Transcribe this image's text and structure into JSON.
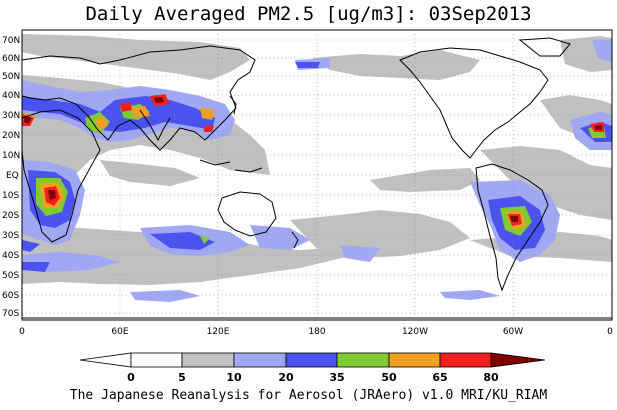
{
  "title": "Daily Averaged PM2.5 [ug/m3]: 03Sep2013",
  "credit": "The Japanese Reanalysis for Aerosol (JRAero) v1.0 MRI/KU_RIAM",
  "lat_labels": [
    "70N",
    "60N",
    "50N",
    "40N",
    "30N",
    "20N",
    "10N",
    "EQ",
    "10S",
    "20S",
    "30S",
    "40S",
    "50S",
    "60S",
    "70S"
  ],
  "lon_labels": [
    "0",
    "60E",
    "120E",
    "180",
    "120W",
    "60W",
    "0"
  ],
  "colorbar": {
    "levels": [
      "0",
      "5",
      "10",
      "20",
      "35",
      "50",
      "65",
      "80"
    ],
    "colors": [
      "#ffffff",
      "#c0c0c0",
      "#a0a8f4",
      "#4a52f0",
      "#80cc30",
      "#f0a020",
      "#f02020",
      "#800000"
    ]
  }
}
